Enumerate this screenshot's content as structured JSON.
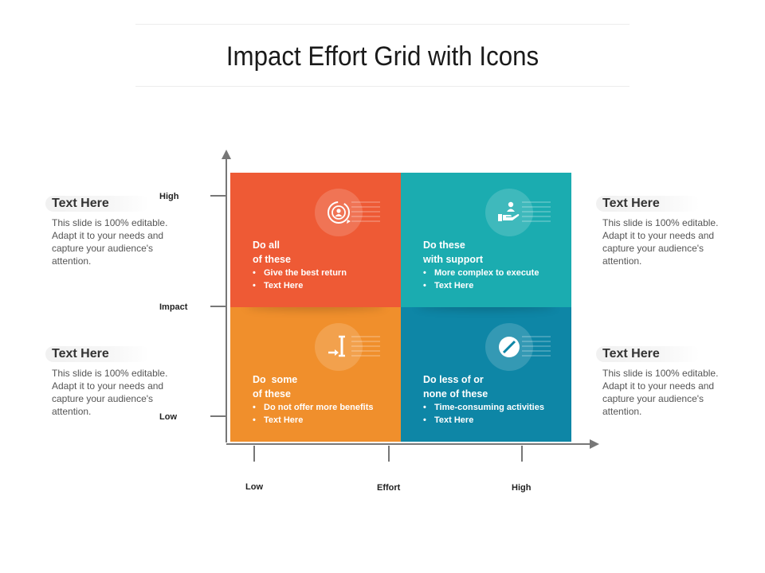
{
  "title": "Impact Effort Grid with Icons",
  "notes": [
    {
      "head": "Text Here",
      "body": "This slide is 100% editable. Adapt it to your needs and capture your audience's attention."
    },
    {
      "head": "Text Here",
      "body": "This slide is 100% editable. Adapt it to your needs and capture your audience's attention."
    },
    {
      "head": "Text Here",
      "body": "This slide is 100% editable. Adapt it to your needs and capture your audience's attention."
    },
    {
      "head": "Text Here",
      "body": "This slide is 100% editable. Adapt it to your needs and capture your audience's attention."
    }
  ],
  "y_axis": {
    "high": "High",
    "label": "Impact",
    "low": "Low"
  },
  "x_axis": {
    "low": "Low",
    "label": "Effort",
    "high": "High"
  },
  "quadrants": [
    {
      "title_1": "Do all",
      "title_2": "of these",
      "bullets": [
        "Give the best return",
        "Text Here"
      ],
      "icon": "user-cycle-icon",
      "color": "#ee5a35"
    },
    {
      "title_1": "Do these",
      "title_2": "with support",
      "bullets": [
        "More complex to execute",
        "Text Here"
      ],
      "icon": "hand-user-icon",
      "color": "#1bacb0"
    },
    {
      "title_1": "Do  some",
      "title_2": "of these",
      "bullets": [
        "Do not offer more benefits",
        "Text Here"
      ],
      "icon": "cursor-arrow-icon",
      "color": "#f08f2c"
    },
    {
      "title_1": "Do less of or",
      "title_2": "none of these",
      "bullets": [
        "Time-consuming activities",
        "Text Here"
      ],
      "icon": "pill-icon",
      "color": "#0e86a6"
    }
  ]
}
